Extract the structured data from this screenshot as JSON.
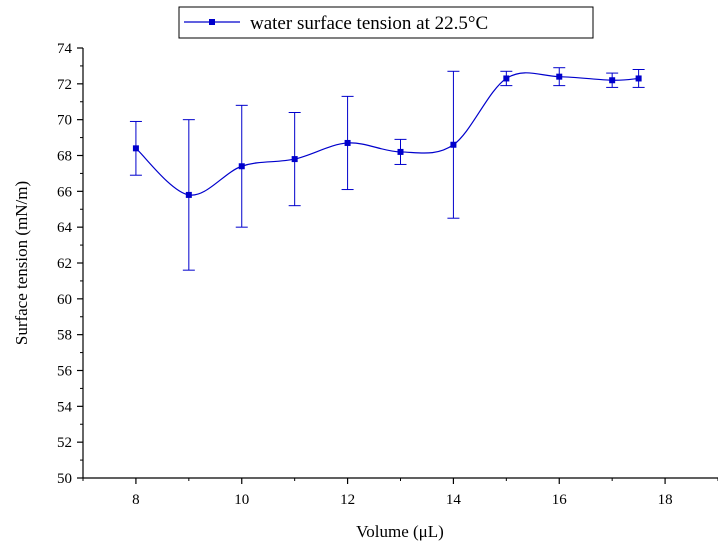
{
  "chart_data": {
    "type": "line",
    "title": "",
    "xlabel": "Volume (μL)",
    "ylabel": "Surface tension (mN/m)",
    "xlim": [
      7,
      19
    ],
    "ylim": [
      50,
      74
    ],
    "x_ticks": [
      8,
      10,
      12,
      14,
      16,
      18
    ],
    "y_ticks": [
      50,
      52,
      54,
      56,
      58,
      60,
      62,
      64,
      66,
      68,
      70,
      72,
      74
    ],
    "x_tick_labels": [
      "8",
      "10",
      "12",
      "14",
      "16",
      "18"
    ],
    "y_tick_labels": [
      "50",
      "52",
      "54",
      "56",
      "58",
      "60",
      "62",
      "64",
      "66",
      "68",
      "70",
      "72",
      "74"
    ],
    "grid": false,
    "legend_position": "top-center",
    "series": [
      {
        "name": "water surface tension at 22.5°C",
        "color": "#0000cc",
        "marker": "square",
        "smooth": true,
        "x": [
          8,
          9,
          10,
          11,
          12,
          13,
          14,
          15,
          16,
          17,
          17.5
        ],
        "y": [
          68.4,
          65.8,
          67.4,
          67.8,
          68.7,
          68.2,
          68.6,
          72.3,
          72.4,
          72.2,
          72.3
        ],
        "error": [
          1.5,
          4.2,
          3.4,
          2.6,
          2.6,
          0.7,
          4.1,
          0.4,
          0.5,
          0.4,
          0.5
        ]
      }
    ]
  }
}
